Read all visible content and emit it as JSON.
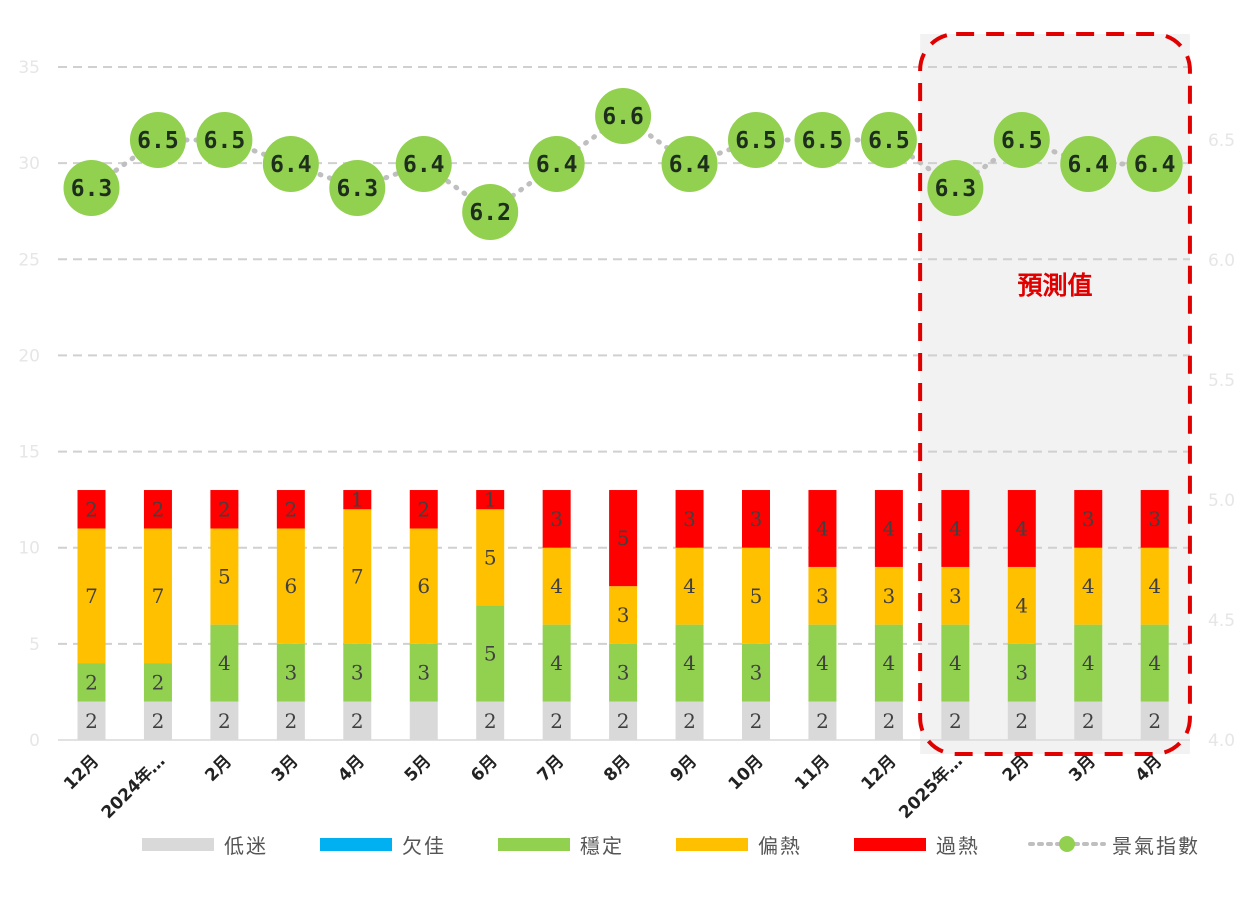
{
  "chart_data": {
    "type": "bar",
    "categories": [
      "12月",
      "2024年…",
      "2月",
      "3月",
      "4月",
      "5月",
      "6月",
      "7月",
      "8月",
      "9月",
      "10月",
      "11月",
      "12月",
      "2025年…",
      "2月",
      "3月",
      "4月"
    ],
    "series": [
      {
        "name": "低迷",
        "type": "stacked-bar",
        "color": "#d9d9d9",
        "values": [
          2,
          2,
          2,
          2,
          2,
          2,
          2,
          2,
          2,
          2,
          2,
          2,
          2,
          2,
          2,
          2,
          2
        ],
        "labels": [
          "2",
          "2",
          "2",
          "2",
          "2",
          "",
          "2",
          "2",
          "2",
          "2",
          "2",
          "2",
          "2",
          "2",
          "2",
          "2",
          "2"
        ]
      },
      {
        "name": "欠佳",
        "type": "stacked-bar",
        "color": "#00b0f0",
        "values": [
          0,
          0,
          0,
          0,
          0,
          0,
          0,
          0,
          0,
          0,
          0,
          0,
          0,
          0,
          0,
          0,
          0
        ]
      },
      {
        "name": "穩定",
        "type": "stacked-bar",
        "color": "#92d050",
        "values": [
          2,
          2,
          4,
          3,
          3,
          3,
          5,
          4,
          3,
          4,
          3,
          4,
          4,
          4,
          3,
          4,
          4
        ]
      },
      {
        "name": "偏熱",
        "type": "stacked-bar",
        "color": "#ffc000",
        "values": [
          7,
          7,
          5,
          6,
          7,
          6,
          5,
          4,
          3,
          4,
          5,
          3,
          3,
          3,
          4,
          4,
          4
        ]
      },
      {
        "name": "過熱",
        "type": "stacked-bar",
        "color": "#ff0000",
        "values": [
          2,
          2,
          2,
          2,
          1,
          2,
          1,
          3,
          5,
          3,
          3,
          4,
          4,
          4,
          4,
          3,
          3
        ]
      },
      {
        "name": "景氣指數",
        "type": "line",
        "color": "#92d050",
        "line_color": "#bfbfbf",
        "values": [
          6.3,
          6.5,
          6.5,
          6.4,
          6.3,
          6.4,
          6.2,
          6.4,
          6.6,
          6.4,
          6.5,
          6.5,
          6.5,
          6.3,
          6.5,
          6.4,
          6.4
        ]
      }
    ],
    "y_left": {
      "ticks": [
        0,
        5,
        10,
        15,
        20,
        25,
        30,
        35
      ],
      "ylim": [
        0,
        35
      ]
    },
    "y_right": {
      "ticks": [
        "4.0",
        "4.5",
        "5.0",
        "5.5",
        "6.0",
        "6.5"
      ],
      "ylim": [
        4.0,
        6.8
      ]
    },
    "grid": true,
    "gridline_style": "dashed",
    "forecast": {
      "label": "預測值",
      "start_index": 13,
      "end_index": 16,
      "color": "#e00000"
    },
    "legend_position": "bottom"
  }
}
